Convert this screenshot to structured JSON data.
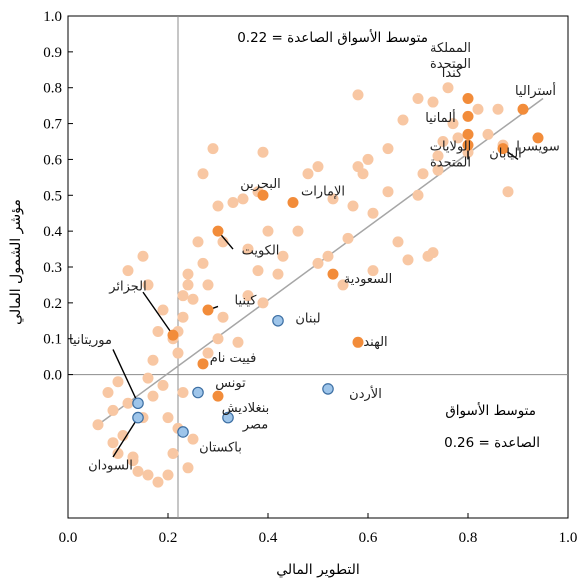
{
  "chart_data": {
    "type": "scatter",
    "xlabel": "التطوير المالي",
    "ylabel": "مؤشر الشمول المالي",
    "xlim": [
      0.0,
      1.0
    ],
    "ylim": [
      -0.4,
      1.0
    ],
    "xticks": [
      "0.0",
      "0.2",
      "0.4",
      "0.6",
      "0.8",
      "1.0"
    ],
    "yticks": [
      "0.0",
      "0.1",
      "0.2",
      "0.3",
      "0.4",
      "0.5",
      "0.6",
      "0.7",
      "0.8",
      "0.9",
      "1.0"
    ],
    "em_average": {
      "x": 0.22,
      "y": 0.0,
      "top_label": "متوسط الأسواق الصاعدة = 0.22",
      "bottom_label_line1": "متوسط الأسواق",
      "bottom_label_line2": "الصاعدة = 0.26"
    },
    "trend_line": {
      "x": [
        0.06,
        0.95
      ],
      "y": [
        -0.14,
        0.77
      ]
    },
    "colors": {
      "background_points": "#f8c7a3",
      "highlight_orange": "#f28c3a",
      "highlight_blue": "#9ec5ea",
      "blue_stroke": "#3d6fa3",
      "trend": "#a6a6a6",
      "reference": "#8c8c8c"
    },
    "background_points": [
      [
        0.06,
        -0.14
      ],
      [
        0.09,
        -0.19
      ],
      [
        0.1,
        -0.22
      ],
      [
        0.11,
        -0.17
      ],
      [
        0.08,
        -0.05
      ],
      [
        0.12,
        -0.08
      ],
      [
        0.1,
        -0.02
      ],
      [
        0.13,
        -0.24
      ],
      [
        0.15,
        -0.12
      ],
      [
        0.14,
        -0.27
      ],
      [
        0.17,
        -0.06
      ],
      [
        0.16,
        -0.01
      ],
      [
        0.17,
        0.04
      ],
      [
        0.19,
        -0.03
      ],
      [
        0.2,
        -0.12
      ],
      [
        0.21,
        -0.22
      ],
      [
        0.18,
        0.12
      ],
      [
        0.19,
        0.18
      ],
      [
        0.21,
        0.1
      ],
      [
        0.22,
        0.06
      ],
      [
        0.23,
        -0.05
      ],
      [
        0.22,
        -0.15
      ],
      [
        0.25,
        -0.18
      ],
      [
        0.24,
        -0.26
      ],
      [
        0.16,
        -0.28
      ],
      [
        0.18,
        -0.3
      ],
      [
        0.2,
        -0.28
      ],
      [
        0.15,
        0.33
      ],
      [
        0.16,
        0.25
      ],
      [
        0.23,
        0.22
      ],
      [
        0.23,
        0.16
      ],
      [
        0.22,
        0.12
      ],
      [
        0.24,
        0.25
      ],
      [
        0.25,
        0.21
      ],
      [
        0.24,
        0.28
      ],
      [
        0.27,
        0.31
      ],
      [
        0.28,
        0.25
      ],
      [
        0.26,
        0.37
      ],
      [
        0.27,
        0.56
      ],
      [
        0.29,
        0.63
      ],
      [
        0.3,
        0.47
      ],
      [
        0.31,
        0.37
      ],
      [
        0.33,
        0.48
      ],
      [
        0.35,
        0.49
      ],
      [
        0.36,
        0.35
      ],
      [
        0.38,
        0.29
      ],
      [
        0.38,
        0.51
      ],
      [
        0.39,
        0.62
      ],
      [
        0.39,
        0.2
      ],
      [
        0.31,
        0.16
      ],
      [
        0.3,
        0.1
      ],
      [
        0.28,
        0.06
      ],
      [
        0.34,
        0.09
      ],
      [
        0.36,
        0.22
      ],
      [
        0.42,
        0.28
      ],
      [
        0.43,
        0.33
      ],
      [
        0.4,
        0.4
      ],
      [
        0.46,
        0.4
      ],
      [
        0.48,
        0.56
      ],
      [
        0.5,
        0.58
      ],
      [
        0.52,
        0.33
      ],
      [
        0.53,
        0.49
      ],
      [
        0.55,
        0.25
      ],
      [
        0.56,
        0.38
      ],
      [
        0.57,
        0.47
      ],
      [
        0.59,
        0.56
      ],
      [
        0.6,
        0.6
      ],
      [
        0.61,
        0.45
      ],
      [
        0.64,
        0.51
      ],
      [
        0.66,
        0.37
      ],
      [
        0.68,
        0.32
      ],
      [
        0.7,
        0.5
      ],
      [
        0.71,
        0.56
      ],
      [
        0.72,
        0.33
      ],
      [
        0.73,
        0.34
      ],
      [
        0.74,
        0.57
      ],
      [
        0.75,
        0.65
      ],
      [
        0.76,
        0.8
      ],
      [
        0.77,
        0.7
      ],
      [
        0.8,
        0.62
      ],
      [
        0.82,
        0.74
      ],
      [
        0.84,
        0.67
      ],
      [
        0.86,
        0.74
      ],
      [
        0.87,
        0.64
      ],
      [
        0.88,
        0.51
      ],
      [
        0.58,
        0.78
      ],
      [
        0.67,
        0.71
      ],
      [
        0.7,
        0.77
      ],
      [
        0.73,
        0.76
      ],
      [
        0.74,
        0.61
      ],
      [
        0.78,
        0.66
      ],
      [
        0.5,
        0.31
      ],
      [
        0.58,
        0.58
      ],
      [
        0.61,
        0.29
      ],
      [
        0.64,
        0.63
      ],
      [
        0.12,
        0.29
      ],
      [
        0.13,
        -0.23
      ],
      [
        0.09,
        -0.1
      ]
    ],
    "points": [
      {
        "label": "المملكة المتحدة",
        "x": 0.8,
        "y": 0.77,
        "group": "orange",
        "label_x": 0.765,
        "label_y": 0.855,
        "label_line2": "المتحدة"
      },
      {
        "label": "كندا",
        "x": 0.8,
        "y": 0.72,
        "group": "orange",
        "label_x": 0.768,
        "label_y": 0.83
      },
      {
        "label": "أستراليا",
        "x": 0.91,
        "y": 0.74,
        "group": "orange",
        "label_x": 0.935,
        "label_y": 0.78
      },
      {
        "label": "ألمانيا",
        "x": 0.8,
        "y": 0.67,
        "group": "orange",
        "label_x": 0.745,
        "label_y": 0.705
      },
      {
        "label": "سويسرا",
        "x": 0.94,
        "y": 0.66,
        "group": "orange",
        "label_x": 0.94,
        "label_y": 0.625
      },
      {
        "label": "اليابان",
        "x": 0.87,
        "y": 0.63,
        "group": "orange",
        "label_x": 0.875,
        "label_y": 0.605
      },
      {
        "label": "الولايات المتحدة",
        "x": 0.8,
        "y": 0.64,
        "group": "orange",
        "label_x": 0.765,
        "label_y": 0.58,
        "label_line2": "المتحدة"
      },
      {
        "label": "البحرين",
        "x": 0.39,
        "y": 0.5,
        "group": "orange",
        "label_x": 0.385,
        "label_y": 0.52
      },
      {
        "label": "الإمارات",
        "x": 0.45,
        "y": 0.48,
        "group": "orange",
        "label_x": 0.51,
        "label_y": 0.5
      },
      {
        "label": "الكويت",
        "x": 0.3,
        "y": 0.4,
        "group": "orange",
        "label_x": 0.385,
        "label_y": 0.335
      },
      {
        "label": "السعودية",
        "x": 0.53,
        "y": 0.28,
        "group": "orange",
        "label_x": 0.6,
        "label_y": 0.255
      },
      {
        "label": "الجزائر",
        "x": 0.21,
        "y": 0.11,
        "group": "orange",
        "label_x": 0.12,
        "label_y": 0.235
      },
      {
        "label": "كينيا",
        "x": 0.28,
        "y": 0.18,
        "group": "orange",
        "label_x": 0.355,
        "label_y": 0.195
      },
      {
        "label": "الهند",
        "x": 0.58,
        "y": 0.09,
        "group": "orange",
        "label_x": 0.615,
        "label_y": 0.08
      },
      {
        "label": "فييت نام",
        "x": 0.27,
        "y": 0.03,
        "group": "orange",
        "label_x": 0.33,
        "label_y": 0.035
      },
      {
        "label": "بنغلاديش",
        "x": 0.3,
        "y": -0.06,
        "group": "orange",
        "label_x": 0.355,
        "label_y": -0.105
      },
      {
        "label": "لبنان",
        "x": 0.42,
        "y": 0.15,
        "group": "blue",
        "label_x": 0.48,
        "label_y": 0.145
      },
      {
        "label": "الأردن",
        "x": 0.52,
        "y": -0.04,
        "group": "blue",
        "label_x": 0.595,
        "label_y": -0.065
      },
      {
        "label": "تونس",
        "x": 0.26,
        "y": -0.05,
        "group": "blue",
        "label_x": 0.325,
        "label_y": -0.035
      },
      {
        "label": "مصر",
        "x": 0.32,
        "y": -0.12,
        "group": "blue",
        "label_x": 0.375,
        "label_y": -0.15
      },
      {
        "label": "باكستان",
        "x": 0.23,
        "y": -0.16,
        "group": "blue",
        "label_x": 0.305,
        "label_y": -0.215
      },
      {
        "label": "موريتانيا",
        "x": 0.14,
        "y": -0.08,
        "group": "blue",
        "label_x": 0.045,
        "label_y": 0.085
      },
      {
        "label": "السودان",
        "x": 0.14,
        "y": -0.12,
        "group": "blue",
        "label_x": 0.085,
        "label_y": -0.265
      }
    ],
    "leader_lines": [
      {
        "from": [
          0.38,
          0.5
        ],
        "to": [
          0.39,
          0.5
        ]
      },
      {
        "from": [
          0.3,
          0.4
        ],
        "to": [
          0.33,
          0.35
        ]
      },
      {
        "from": [
          0.21,
          0.11
        ],
        "to": [
          0.15,
          0.23
        ]
      },
      {
        "from": [
          0.28,
          0.18
        ],
        "to": [
          0.3,
          0.19
        ]
      },
      {
        "from": [
          0.87,
          0.63
        ],
        "to": [
          0.9,
          0.6
        ]
      },
      {
        "from": [
          0.8,
          0.64
        ],
        "to": [
          0.8,
          0.6
        ]
      },
      {
        "from": [
          0.14,
          -0.08
        ],
        "to": [
          0.09,
          0.07
        ]
      },
      {
        "from": [
          0.14,
          -0.12
        ],
        "to": [
          0.09,
          -0.23
        ]
      }
    ]
  }
}
